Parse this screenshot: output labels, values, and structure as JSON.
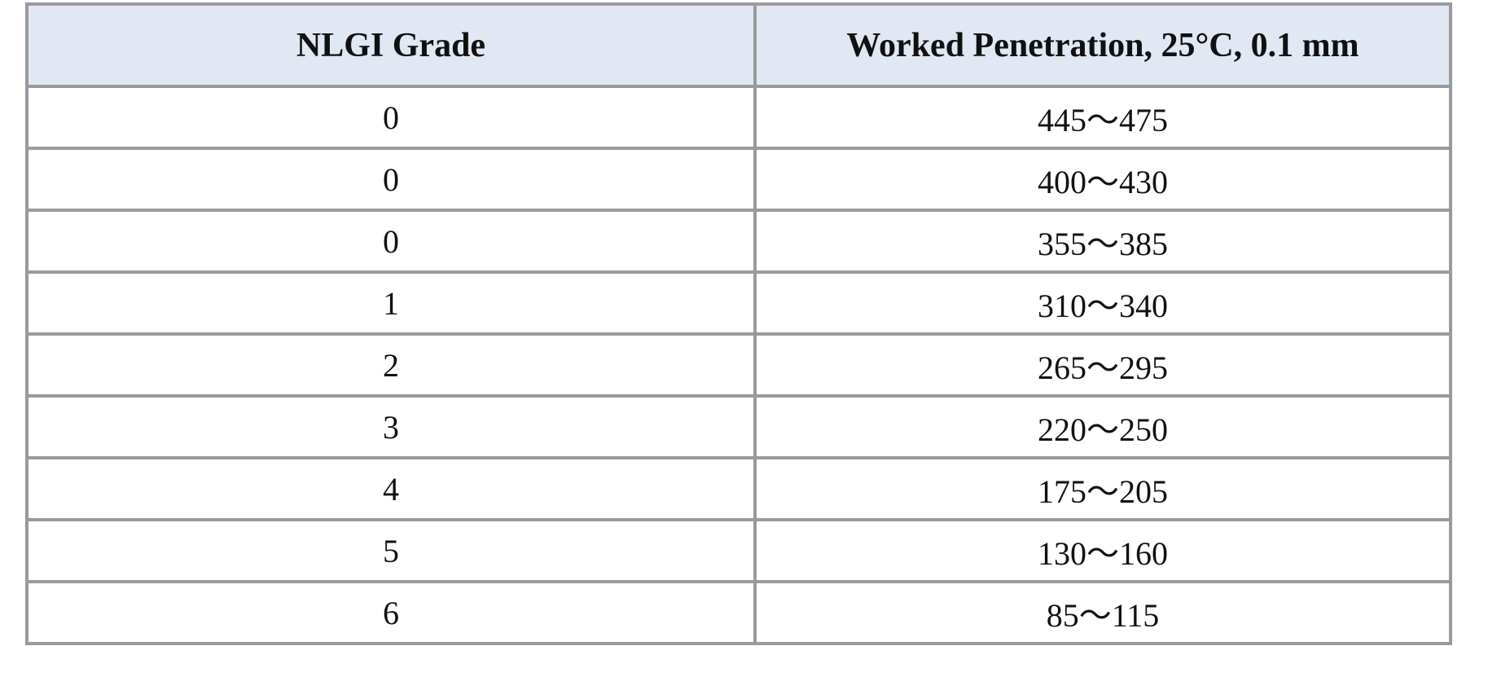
{
  "table": {
    "headers": [
      "NLGI Grade",
      "Worked Penetration, 25°C, 0.1 mm"
    ],
    "rows": [
      [
        "0",
        "445～475"
      ],
      [
        "0",
        "400～430"
      ],
      [
        "0",
        "355～385"
      ],
      [
        "1",
        "310～340"
      ],
      [
        "2",
        "265～295"
      ],
      [
        "3",
        "220～250"
      ],
      [
        "4",
        "175～205"
      ],
      [
        "5",
        "130～160"
      ],
      [
        "6",
        "85～115"
      ]
    ]
  },
  "colors": {
    "header_background": "#e1e8f4",
    "border": "#999a9e"
  }
}
